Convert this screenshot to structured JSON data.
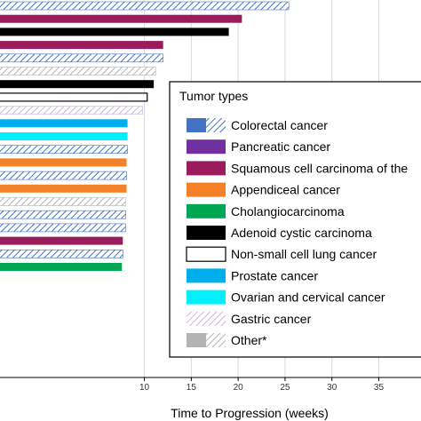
{
  "chart_data": {
    "type": "bar",
    "orientation": "horizontal",
    "xlabel": "Time to Progression (weeks)",
    "ylabel": "",
    "title": "",
    "xlim": [
      -5.4,
      39.5
    ],
    "xticks": [
      10,
      15,
      20,
      25,
      30,
      35
    ],
    "grid": true,
    "legend_position": "right",
    "bars": [
      {
        "value": 25.4,
        "type": "Colorectal cancer"
      },
      {
        "value": 20.4,
        "type": "Squamous cell carcinoma of the"
      },
      {
        "value": 19.0,
        "type": "Adenoid cystic carcinoma"
      },
      {
        "value": 12.0,
        "type": "Squamous cell carcinoma of the"
      },
      {
        "value": 12.0,
        "type": "Colorectal cancer"
      },
      {
        "value": 11.2,
        "type": "Other*"
      },
      {
        "value": 11.0,
        "type": "Adenoid cystic carcinoma"
      },
      {
        "value": 10.3,
        "type": "Non-small cell lung cancer"
      },
      {
        "value": 9.8,
        "type": "Gastric cancer"
      },
      {
        "value": 8.2,
        "type": "Prostate cancer"
      },
      {
        "value": 8.2,
        "type": "Ovarian and cervical cancer"
      },
      {
        "value": 8.2,
        "type": "Colorectal cancer"
      },
      {
        "value": 8.1,
        "type": "Appendiceal cancer"
      },
      {
        "value": 8.1,
        "type": "Colorectal cancer"
      },
      {
        "value": 8.1,
        "type": "Appendiceal cancer"
      },
      {
        "value": 8.0,
        "type": "Other*"
      },
      {
        "value": 8.0,
        "type": "Colorectal cancer"
      },
      {
        "value": 8.0,
        "type": "Colorectal cancer"
      },
      {
        "value": 7.7,
        "type": "Squamous cell carcinoma of the"
      },
      {
        "value": 7.7,
        "type": "Colorectal cancer"
      },
      {
        "value": 7.6,
        "type": "Cholangiocarcinoma"
      }
    ],
    "legend_title": "Tumor types",
    "legend": [
      {
        "label": "Colorectal cancer",
        "color": "#4472c4",
        "icon": "half-solid-half-hatched"
      },
      {
        "label": "Pancreatic cancer",
        "color": "#7030a0",
        "icon": "solid"
      },
      {
        "label": "Squamous cell carcinoma of the",
        "color": "#9b1c5c",
        "icon": "solid"
      },
      {
        "label": "Appendiceal cancer",
        "color": "#f58025",
        "icon": "solid"
      },
      {
        "label": "Cholangiocarcinoma",
        "color": "#00a651",
        "icon": "solid"
      },
      {
        "label": "Adenoid cystic carcinoma",
        "color": "#000000",
        "icon": "solid"
      },
      {
        "label": "Non-small cell lung cancer",
        "color": "#ffffff",
        "icon": "outline"
      },
      {
        "label": "Prostate cancer",
        "color": "#00aeef",
        "icon": "solid"
      },
      {
        "label": "Ovarian and cervical cancer",
        "color": "#00f0ff",
        "icon": "solid"
      },
      {
        "label": "Gastric cancer",
        "color": "#c9b3e6",
        "icon": "hatched"
      },
      {
        "label": "Other*",
        "color": "#b3b3b3",
        "icon": "half-solid-half-hatched"
      }
    ]
  }
}
